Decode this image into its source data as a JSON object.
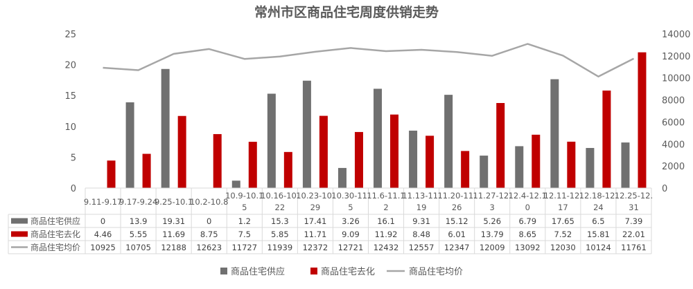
{
  "chart_data": {
    "type": "bar",
    "title": "常州市区商品住宅周度供销走势",
    "categories": [
      "9.11-9.17",
      "9.17-9.24",
      "9.25-10.1",
      "10.2-10.8",
      "10.9-10.15",
      "10.16-10.22",
      "10.23-10.29",
      "10.30-11.5",
      "11.6-11.12",
      "11.13-11.19",
      "11.20-11.26",
      "11.27-12.3",
      "12.4-12.10",
      "12.11-12.17",
      "12.18-12.24",
      "12.25-12.31"
    ],
    "category_lines": [
      [
        "9.11-9.17"
      ],
      [
        "9.17-9.24"
      ],
      [
        "9.25-10.1"
      ],
      [
        "10.2-10.8"
      ],
      [
        "10.9-10.1",
        "5"
      ],
      [
        "10.16-10.",
        "22"
      ],
      [
        "10.23-10.",
        "29"
      ],
      [
        "10.30-11.",
        "5"
      ],
      [
        "11.6-11.1",
        "2"
      ],
      [
        "11.13-11.",
        "19"
      ],
      [
        "11.20-11.",
        "26"
      ],
      [
        "11.27-12.",
        "3"
      ],
      [
        "12.4-12.1",
        "0"
      ],
      [
        "12.11-12.",
        "17"
      ],
      [
        "12.18-12.",
        "24"
      ],
      [
        "12.25-12.",
        "31"
      ]
    ],
    "series": [
      {
        "name": "商品住宅供应",
        "type": "bar",
        "axis": "left",
        "color": "#707070",
        "values": [
          0,
          13.9,
          19.31,
          0,
          1.2,
          15.3,
          17.41,
          3.26,
          16.1,
          9.31,
          15.12,
          5.26,
          6.79,
          17.65,
          6.5,
          7.39
        ]
      },
      {
        "name": "商品住宅去化",
        "type": "bar",
        "axis": "left",
        "color": "#c00000",
        "values": [
          4.46,
          5.55,
          11.69,
          8.75,
          7.5,
          5.85,
          11.71,
          9.09,
          11.92,
          8.48,
          6.01,
          13.79,
          8.65,
          7.52,
          15.81,
          22.01
        ]
      },
      {
        "name": "商品住宅均价",
        "type": "line",
        "axis": "right",
        "color": "#a6a6a6",
        "values": [
          10925,
          10705,
          12188,
          12623,
          11727,
          11939,
          12372,
          12721,
          12432,
          12557,
          12347,
          12009,
          13092,
          12030,
          10124,
          11761
        ]
      }
    ],
    "y_left": {
      "min": 0,
      "max": 25,
      "ticks": [
        "0",
        "5",
        "10",
        "15",
        "20",
        "25"
      ]
    },
    "y_right": {
      "min": 0,
      "max": 14000,
      "ticks": [
        "0",
        "2000",
        "4000",
        "6000",
        "8000",
        "10000",
        "12000",
        "14000"
      ]
    },
    "grid": false,
    "legend_position": "bottom",
    "data_table": true
  }
}
